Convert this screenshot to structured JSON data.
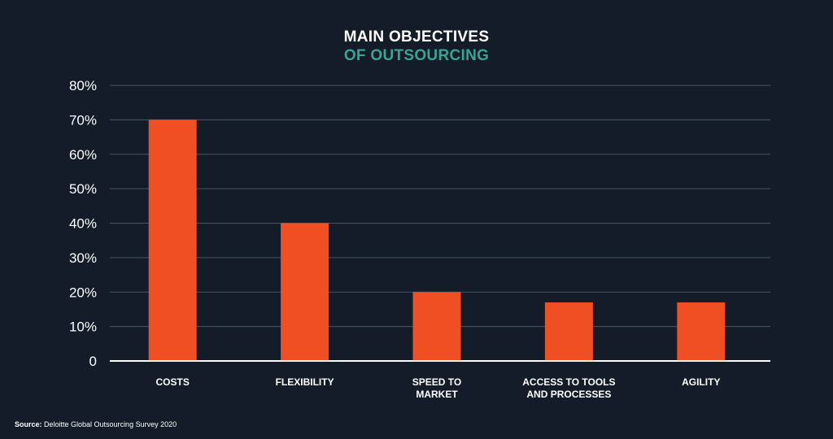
{
  "chart_data": {
    "type": "bar",
    "title": [
      "MAIN OBJECTIVES",
      "OF OUTSOURCING"
    ],
    "categories": [
      [
        "COSTS"
      ],
      [
        "FLEXIBILITY"
      ],
      [
        "SPEED TO",
        "MARKET"
      ],
      [
        "ACCESS TO TOOLS",
        "AND PROCESSES"
      ],
      [
        "AGILITY"
      ]
    ],
    "values": [
      70,
      40,
      20,
      17,
      17
    ],
    "ylim": [
      0,
      80
    ],
    "yticks": [
      0,
      10,
      20,
      30,
      40,
      50,
      60,
      70,
      80
    ],
    "ytick_labels": [
      "0",
      "10%",
      "20%",
      "30%",
      "40%",
      "50%",
      "60%",
      "70%",
      "80%"
    ],
    "grid": true,
    "xlabel": "",
    "ylabel": ""
  },
  "colors": {
    "background": "#131c28",
    "bar": "#f04e23",
    "title_accent": "#3aa394",
    "grid": "#4a5563",
    "axis": "#ffffff"
  },
  "source": {
    "label": "Source:",
    "text": " Deloitte Global Outsourcing Survey 2020"
  }
}
